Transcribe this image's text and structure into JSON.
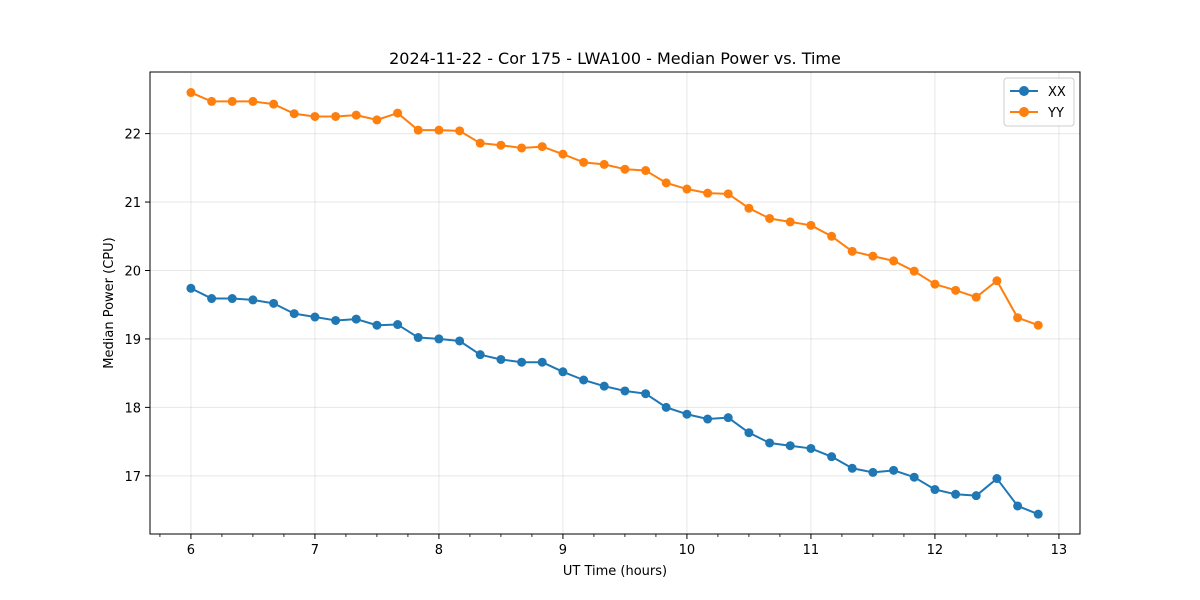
{
  "chart_data": {
    "type": "line",
    "title": "2024-11-22 - Cor 175 - LWA100 - Median Power vs. Time",
    "xlabel": "UT Time (hours)",
    "ylabel": "Median Power (CPU)",
    "xlim": [
      5.67,
      13.17
    ],
    "ylim": [
      16.15,
      22.9
    ],
    "xticks": [
      6,
      7,
      8,
      9,
      10,
      11,
      12,
      13
    ],
    "xtick_labels": [
      "6",
      "7",
      "8",
      "9",
      "10",
      "11",
      "12",
      "13"
    ],
    "yticks": [
      17,
      18,
      19,
      20,
      21,
      22
    ],
    "ytick_labels": [
      "17",
      "18",
      "19",
      "20",
      "21",
      "22"
    ],
    "grid": true,
    "legend_position": "top-right",
    "x": [
      6.0,
      6.167,
      6.333,
      6.5,
      6.667,
      6.833,
      7.0,
      7.167,
      7.333,
      7.5,
      7.667,
      7.833,
      8.0,
      8.167,
      8.333,
      8.5,
      8.667,
      8.833,
      9.0,
      9.167,
      9.333,
      9.5,
      9.667,
      9.833,
      10.0,
      10.167,
      10.333,
      10.5,
      10.667,
      10.833,
      11.0,
      11.167,
      11.333,
      11.5,
      11.667,
      11.833,
      12.0,
      12.167,
      12.333,
      12.5,
      12.667,
      12.833
    ],
    "series": [
      {
        "name": "XX",
        "color": "#1f77b4",
        "values": [
          19.74,
          19.59,
          19.59,
          19.57,
          19.52,
          19.37,
          19.32,
          19.27,
          19.29,
          19.2,
          19.21,
          19.02,
          19.0,
          18.97,
          18.77,
          18.7,
          18.66,
          18.66,
          18.52,
          18.4,
          18.31,
          18.24,
          18.2,
          18.0,
          17.9,
          17.83,
          17.85,
          17.63,
          17.48,
          17.44,
          17.4,
          17.28,
          17.11,
          17.05,
          17.08,
          16.98,
          16.8,
          16.73,
          16.71,
          16.96,
          16.56,
          16.44
        ]
      },
      {
        "name": "YY",
        "color": "#ff7f0e",
        "values": [
          22.6,
          22.47,
          22.47,
          22.47,
          22.43,
          22.29,
          22.25,
          22.25,
          22.27,
          22.2,
          22.3,
          22.05,
          22.05,
          22.04,
          21.86,
          21.83,
          21.79,
          21.81,
          21.7,
          21.58,
          21.55,
          21.48,
          21.46,
          21.28,
          21.19,
          21.13,
          21.12,
          20.91,
          20.76,
          20.71,
          20.66,
          20.5,
          20.28,
          20.21,
          20.14,
          19.99,
          19.8,
          19.71,
          19.61,
          19.85,
          19.31,
          19.2
        ]
      }
    ]
  }
}
